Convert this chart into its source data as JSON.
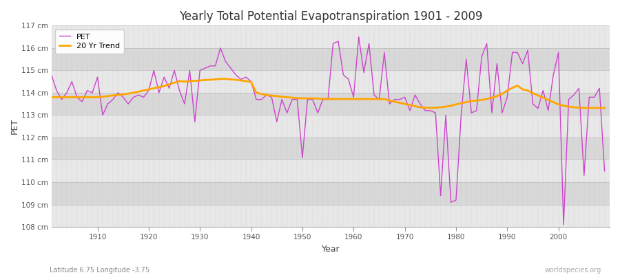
{
  "title": "Yearly Total Potential Evapotranspiration 1901 - 2009",
  "xlabel": "Year",
  "ylabel": "PET",
  "subtitle_left": "Latitude 6.75 Longitude -3.75",
  "subtitle_right": "worldspecies.org",
  "pet_color": "#cc44cc",
  "trend_color": "#ffa500",
  "background_color": "#ffffff",
  "plot_bg_color": "#f0f0f0",
  "years": [
    1901,
    1902,
    1903,
    1904,
    1905,
    1906,
    1907,
    1908,
    1909,
    1910,
    1911,
    1912,
    1913,
    1914,
    1915,
    1916,
    1917,
    1918,
    1919,
    1920,
    1921,
    1922,
    1923,
    1924,
    1925,
    1926,
    1927,
    1928,
    1929,
    1930,
    1931,
    1932,
    1933,
    1934,
    1935,
    1936,
    1937,
    1938,
    1939,
    1940,
    1941,
    1942,
    1943,
    1944,
    1945,
    1946,
    1947,
    1948,
    1949,
    1950,
    1951,
    1952,
    1953,
    1954,
    1955,
    1956,
    1957,
    1958,
    1959,
    1960,
    1961,
    1962,
    1963,
    1964,
    1965,
    1966,
    1967,
    1968,
    1969,
    1970,
    1971,
    1972,
    1973,
    1974,
    1975,
    1976,
    1977,
    1978,
    1979,
    1980,
    1981,
    1982,
    1983,
    1984,
    1985,
    1986,
    1987,
    1988,
    1989,
    1990,
    1991,
    1992,
    1993,
    1994,
    1995,
    1996,
    1997,
    1998,
    1999,
    2000,
    2001,
    2002,
    2003,
    2004,
    2005,
    2006,
    2007,
    2008,
    2009
  ],
  "pet_values": [
    114.8,
    114.1,
    113.7,
    114.0,
    114.5,
    113.8,
    113.6,
    114.1,
    114.0,
    114.7,
    113.0,
    113.5,
    113.7,
    114.0,
    113.8,
    113.5,
    113.8,
    113.9,
    113.8,
    114.1,
    115.0,
    114.0,
    114.7,
    114.2,
    115.0,
    114.1,
    113.5,
    115.0,
    112.7,
    115.0,
    115.1,
    115.2,
    115.2,
    116.0,
    115.4,
    115.1,
    114.8,
    114.6,
    114.7,
    114.5,
    113.7,
    113.7,
    113.9,
    113.8,
    112.7,
    113.7,
    113.1,
    113.7,
    113.7,
    111.1,
    113.7,
    113.7,
    113.1,
    113.7,
    113.7,
    116.2,
    116.3,
    114.8,
    114.6,
    113.8,
    116.5,
    114.9,
    116.2,
    113.9,
    113.7,
    115.8,
    113.5,
    113.7,
    113.7,
    113.8,
    113.2,
    113.9,
    113.5,
    113.2,
    113.2,
    113.1,
    109.4,
    113.0,
    109.1,
    109.2,
    113.0,
    115.5,
    113.1,
    113.2,
    115.6,
    116.2,
    113.1,
    115.3,
    113.1,
    113.8,
    115.8,
    115.8,
    115.3,
    115.9,
    113.5,
    113.3,
    114.1,
    113.2,
    114.8,
    115.8,
    108.1,
    113.7,
    113.9,
    114.2,
    110.3,
    113.8,
    113.8,
    114.2,
    110.5
  ],
  "trend_values": [
    113.8,
    113.8,
    113.8,
    113.8,
    113.8,
    113.8,
    113.8,
    113.8,
    113.8,
    113.8,
    113.82,
    113.85,
    113.88,
    113.9,
    113.93,
    113.96,
    114.0,
    114.05,
    114.1,
    114.15,
    114.2,
    114.25,
    114.3,
    114.38,
    114.45,
    114.52,
    114.5,
    114.52,
    114.53,
    114.55,
    114.57,
    114.58,
    114.6,
    114.62,
    114.62,
    114.6,
    114.58,
    114.55,
    114.52,
    114.48,
    114.0,
    113.95,
    113.9,
    113.87,
    113.85,
    113.82,
    113.8,
    113.78,
    113.76,
    113.75,
    113.75,
    113.75,
    113.74,
    113.73,
    113.72,
    113.72,
    113.72,
    113.72,
    113.72,
    113.72,
    113.72,
    113.72,
    113.72,
    113.72,
    113.72,
    113.72,
    113.65,
    113.6,
    113.55,
    113.5,
    113.45,
    113.4,
    113.35,
    113.33,
    113.32,
    113.33,
    113.35,
    113.38,
    113.42,
    113.48,
    113.53,
    113.58,
    113.63,
    113.65,
    113.68,
    113.72,
    113.78,
    113.85,
    113.95,
    114.1,
    114.22,
    114.32,
    114.15,
    114.1,
    113.98,
    113.88,
    113.78,
    113.68,
    113.58,
    113.48,
    113.42,
    113.38,
    113.35,
    113.33,
    113.32,
    113.32,
    113.32,
    113.32,
    113.32
  ],
  "ylim": [
    108,
    117
  ],
  "yticks": [
    108,
    109,
    110,
    111,
    112,
    113,
    114,
    115,
    116,
    117
  ],
  "ytick_labels": [
    "108 cm",
    "109 cm",
    "110 cm",
    "111 cm",
    "112 cm",
    "113 cm",
    "114 cm",
    "115 cm",
    "116 cm",
    "117 cm"
  ],
  "xticks": [
    1910,
    1920,
    1930,
    1940,
    1950,
    1960,
    1970,
    1980,
    1990,
    2000
  ],
  "xlim_min": 1901,
  "xlim_max": 2010,
  "legend_pet_label": "PET",
  "legend_trend_label": "20 Yr Trend",
  "band_colors": [
    "#e8e8e8",
    "#d8d8d8"
  ]
}
